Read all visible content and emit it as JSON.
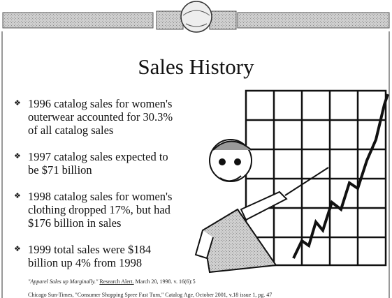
{
  "header": {
    "title": "Sales History"
  },
  "bullets": [
    {
      "marker": "❖",
      "lines": [
        "1996 catalog sales for women's",
        "outerwear accounted for 30.3%",
        "of all catalog sales"
      ]
    },
    {
      "marker": "❖",
      "lines": [
        "1997 catalog sales expected to",
        "be $71 billion"
      ]
    },
    {
      "marker": "❖",
      "lines": [
        "1998 catalog sales for women's",
        "clothing dropped 17%, but had",
        "$176 billion in sales"
      ]
    },
    {
      "marker": "❖",
      "lines": [
        "1999 total sales were $184",
        "billion up 4% from 1998"
      ]
    }
  ],
  "footnotes": [
    {
      "article": "\"Apparel Sales up Marginally.\"",
      "source": "Research Alert.",
      "detail": "March 20, 1998.  v. 16(6):5"
    },
    {
      "text": "Chicago Sun-Times, \"Consumer Shopping Spree Fast Turn,\" Catalog Age, October 2001, v.18 issue 1, pg. 47"
    }
  ]
}
